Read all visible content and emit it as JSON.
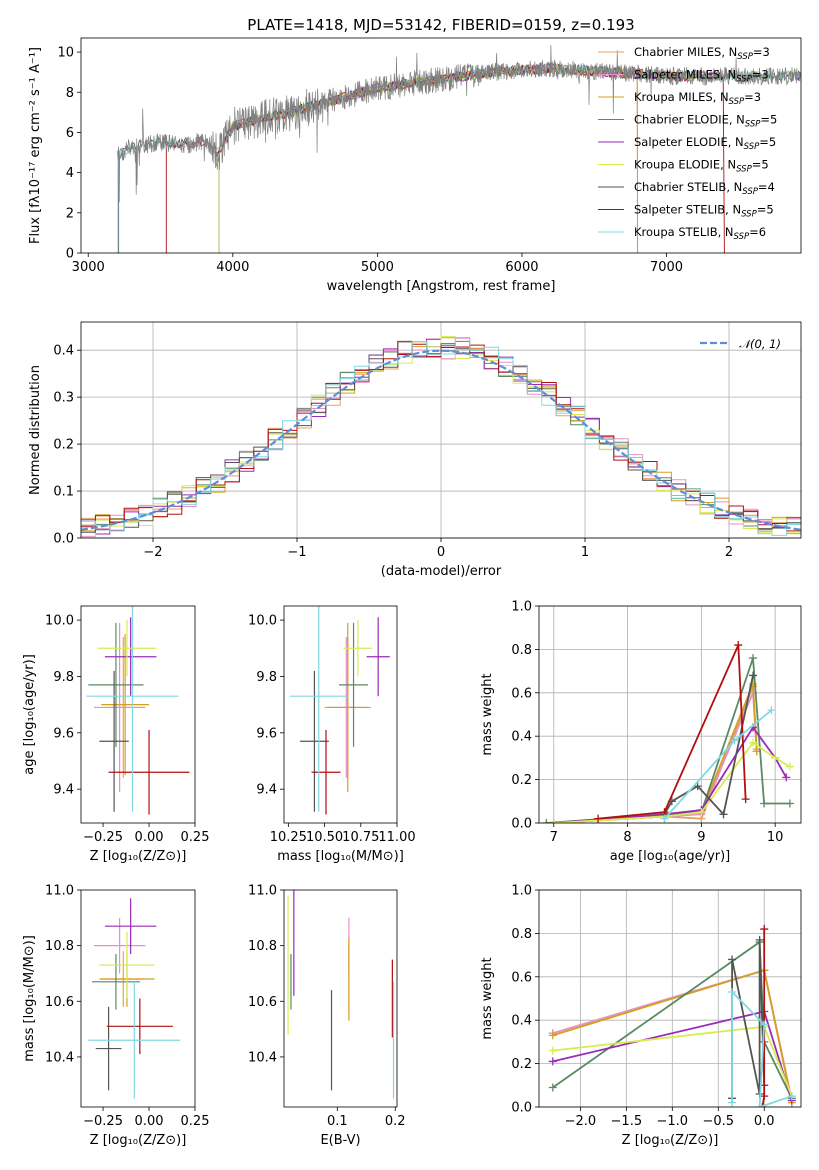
{
  "palette": {
    "chabrier_miles": "#e8a060",
    "salpeter_miles": "#e890c8",
    "kroupa_miles": "#d4a020",
    "chabrier_elodie": "#5a8a64",
    "salpeter_elodie": "#9a2ab8",
    "kroupa_elodie": "#d8ec50",
    "chabrier_stelib": "#555555",
    "salpeter_stelib": "#b01010",
    "kroupa_stelib": "#80d8e0",
    "spectrum": "#808080",
    "normal": "#5b8fd9"
  },
  "chart_data": [
    {
      "id": "spectrum",
      "type": "line",
      "title": "PLATE=1418, MJD=53142, FIBERID=0159, z=0.193",
      "xlabel": "wavelength [Angstrom, rest frame]",
      "ylabel": "Flux [fλ10⁻¹⁷ erg cm⁻² s⁻¹ A⁻¹]",
      "xlim": [
        2950,
        7930
      ],
      "ylim": [
        0,
        10.7
      ],
      "xticks": [
        3000,
        4000,
        5000,
        6000,
        7000
      ],
      "yticks": [
        0,
        2,
        4,
        6,
        8,
        10
      ],
      "grid": false,
      "legend_position": "top-right",
      "legend": [
        {
          "prefix": "Chabrier MILES, N",
          "sub": "SSP",
          "suffix": "=3",
          "key": "chabrier_miles"
        },
        {
          "prefix": "Salpeter MILES, N",
          "sub": "SSP",
          "suffix": "=3",
          "key": "salpeter_miles"
        },
        {
          "prefix": "Kroupa MILES, N",
          "sub": "SSP",
          "suffix": "=3",
          "key": "kroupa_miles"
        },
        {
          "prefix": "Chabrier ELODIE, N",
          "sub": "SSP",
          "suffix": "=5",
          "key": "chabrier_elodie"
        },
        {
          "prefix": "Salpeter ELODIE, N",
          "sub": "SSP",
          "suffix": "=5",
          "key": "salpeter_elodie"
        },
        {
          "prefix": "Kroupa ELODIE, N",
          "sub": "SSP",
          "suffix": "=5",
          "key": "kroupa_elodie"
        },
        {
          "prefix": "Chabrier STELIB, N",
          "sub": "SSP",
          "suffix": "=4",
          "key": "chabrier_stelib"
        },
        {
          "prefix": "Salpeter STELIB, N",
          "sub": "SSP",
          "suffix": "=5",
          "key": "salpeter_stelib"
        },
        {
          "prefix": "Kroupa STELIB, N",
          "sub": "SSP",
          "suffix": "=6",
          "key": "kroupa_stelib"
        }
      ],
      "continuum": [
        [
          3200,
          4.8
        ],
        [
          3300,
          5.3
        ],
        [
          3500,
          5.5
        ],
        [
          3700,
          5.4
        ],
        [
          3800,
          5.6
        ],
        [
          3900,
          5.0
        ],
        [
          4000,
          6.3
        ],
        [
          4200,
          6.7
        ],
        [
          4400,
          7.0
        ],
        [
          4600,
          7.4
        ],
        [
          4800,
          7.8
        ],
        [
          5000,
          8.2
        ],
        [
          5200,
          8.4
        ],
        [
          5400,
          8.6
        ],
        [
          5600,
          8.8
        ],
        [
          5800,
          9.0
        ],
        [
          6000,
          9.1
        ],
        [
          6200,
          9.2
        ],
        [
          6400,
          9.1
        ],
        [
          6600,
          9.0
        ],
        [
          6800,
          8.9
        ],
        [
          7000,
          8.8
        ],
        [
          7200,
          8.8
        ],
        [
          7400,
          8.8
        ],
        [
          7930,
          8.8
        ]
      ]
    },
    {
      "id": "residuals",
      "type": "step",
      "xlabel": "(data-model)/error",
      "ylabel": "Normed distribution",
      "xlim": [
        -2.5,
        2.5
      ],
      "ylim": [
        0,
        0.46
      ],
      "xticks": [
        -2,
        -1,
        0,
        1,
        2
      ],
      "yticks": [
        0.0,
        0.1,
        0.2,
        0.3,
        0.4
      ],
      "grid": true,
      "legend_position": "top-right",
      "legend_label": "𝒩(0, 1)",
      "bin_width": 0.1
    },
    {
      "id": "age_vs_z",
      "type": "errorbar",
      "xlabel": "Z [log₁₀(Z/Z⊙)]",
      "ylabel": "age  [log₁₀(age/yr)]",
      "xlim": [
        -0.37,
        0.25
      ],
      "ylim": [
        9.28,
        10.05
      ],
      "xticks": [
        -0.25,
        0.0,
        0.25
      ],
      "yticks": [
        9.4,
        9.6,
        9.8,
        10.0
      ],
      "grid": false,
      "points": [
        {
          "key": "chabrier_miles",
          "x": -0.14,
          "xerr": 0.12,
          "y": 9.69,
          "yerr": 0.25
        },
        {
          "key": "salpeter_miles",
          "x": -0.16,
          "xerr": 0.14,
          "y": 9.69,
          "yerr": 0.3
        },
        {
          "key": "kroupa_miles",
          "x": -0.13,
          "xerr": 0.13,
          "y": 9.7,
          "yerr": 0.25
        },
        {
          "key": "chabrier_elodie",
          "x": -0.18,
          "xerr": 0.15,
          "y": 9.77,
          "yerr": 0.22
        },
        {
          "key": "salpeter_elodie",
          "x": -0.1,
          "xerr": 0.14,
          "y": 9.87,
          "yerr": 0.14
        },
        {
          "key": "kroupa_elodie",
          "x": -0.12,
          "xerr": 0.16,
          "y": 9.9,
          "yerr": 0.1
        },
        {
          "key": "chabrier_stelib",
          "x": -0.19,
          "xerr": 0.08,
          "y": 9.57,
          "yerr": 0.25
        },
        {
          "key": "salpeter_stelib",
          "x": 0.0,
          "xerr": 0.22,
          "y": 9.46,
          "yerr": 0.15
        },
        {
          "key": "kroupa_stelib",
          "x": -0.09,
          "xerr": 0.25,
          "y": 9.73,
          "yerr": 0.41
        }
      ]
    },
    {
      "id": "age_vs_mass",
      "type": "errorbar",
      "xlabel": "mass [log₁₀(M/M⊙)]",
      "ylabel": "",
      "xlim": [
        10.22,
        11.0
      ],
      "ylim": [
        9.28,
        10.05
      ],
      "xticks": [
        10.25,
        10.5,
        10.75,
        11.0
      ],
      "yticks": [
        9.4,
        9.6,
        9.8,
        10.0
      ],
      "grid": false,
      "points": [
        {
          "key": "chabrier_miles",
          "x": 10.66,
          "xerr": 0.16,
          "y": 9.69,
          "yerr": 0.25
        },
        {
          "key": "salpeter_miles",
          "x": 10.65,
          "xerr": 0.12,
          "y": 9.69,
          "yerr": 0.25
        },
        {
          "key": "kroupa_miles",
          "x": 10.66,
          "xerr": 0.14,
          "y": 9.69,
          "yerr": 0.3
        },
        {
          "key": "chabrier_elodie",
          "x": 10.7,
          "xerr": 0.1,
          "y": 9.77,
          "yerr": 0.22
        },
        {
          "key": "salpeter_elodie",
          "x": 10.87,
          "xerr": 0.08,
          "y": 9.87,
          "yerr": 0.14
        },
        {
          "key": "kroupa_elodie",
          "x": 10.73,
          "xerr": 0.1,
          "y": 9.9,
          "yerr": 0.1
        },
        {
          "key": "chabrier_stelib",
          "x": 10.43,
          "xerr": 0.1,
          "y": 9.57,
          "yerr": 0.25
        },
        {
          "key": "salpeter_stelib",
          "x": 10.51,
          "xerr": 0.1,
          "y": 9.46,
          "yerr": 0.15
        },
        {
          "key": "kroupa_stelib",
          "x": 10.46,
          "xerr": 0.2,
          "y": 9.73,
          "yerr": 0.41
        }
      ]
    },
    {
      "id": "weight_vs_age",
      "type": "line",
      "xlabel": "age  [log₁₀(age/yr)]",
      "ylabel": "mass weight",
      "xlim": [
        6.8,
        10.35
      ],
      "ylim": [
        0,
        1
      ],
      "xticks": [
        7,
        8,
        9,
        10
      ],
      "yticks": [
        0.0,
        0.2,
        0.4,
        0.6,
        0.8,
        1.0
      ],
      "grid": true,
      "series": [
        {
          "key": "chabrier_miles",
          "x": [
            7.0,
            8.5,
            9.0,
            9.7,
            9.75
          ],
          "y": [
            0.0,
            0.03,
            0.02,
            0.63,
            0.34
          ]
        },
        {
          "key": "salpeter_miles",
          "x": [
            7.0,
            8.5,
            9.0,
            9.7,
            9.75
          ],
          "y": [
            0.0,
            0.03,
            0.04,
            0.6,
            0.33
          ]
        },
        {
          "key": "kroupa_miles",
          "x": [
            7.0,
            8.5,
            9.0,
            9.7,
            9.75
          ],
          "y": [
            0.0,
            0.03,
            0.05,
            0.64,
            0.33
          ]
        },
        {
          "key": "chabrier_elodie",
          "x": [
            6.9,
            8.5,
            9.0,
            9.7,
            9.85,
            10.2
          ],
          "y": [
            0.0,
            0.04,
            0.05,
            0.76,
            0.09,
            0.09
          ]
        },
        {
          "key": "salpeter_elodie",
          "x": [
            7.0,
            8.5,
            9.0,
            9.7,
            10.0,
            10.15
          ],
          "y": [
            0.0,
            0.04,
            0.06,
            0.44,
            0.3,
            0.21
          ]
        },
        {
          "key": "kroupa_elodie",
          "x": [
            7.0,
            8.5,
            9.0,
            9.7,
            10.0,
            10.2
          ],
          "y": [
            0.0,
            0.03,
            0.05,
            0.37,
            0.3,
            0.26
          ]
        },
        {
          "key": "chabrier_stelib",
          "x": [
            8.5,
            8.6,
            8.95,
            9.3,
            9.7
          ],
          "y": [
            0.04,
            0.1,
            0.17,
            0.04,
            0.68
          ]
        },
        {
          "key": "salpeter_stelib",
          "x": [
            7.6,
            8.5,
            9.5,
            9.6
          ],
          "y": [
            0.02,
            0.05,
            0.82,
            0.11
          ]
        },
        {
          "key": "kroupa_stelib",
          "x": [
            8.5,
            9.45,
            9.95
          ],
          "y": [
            0.02,
            0.38,
            0.52
          ]
        }
      ]
    },
    {
      "id": "mass_vs_z",
      "type": "errorbar",
      "xlabel": "Z [log₁₀(Z/Z⊙)]",
      "ylabel": "mass [log₁₀(M/M⊙)]",
      "xlim": [
        -0.37,
        0.25
      ],
      "ylim": [
        10.22,
        11.0
      ],
      "xticks": [
        -0.25,
        0.0,
        0.25
      ],
      "yticks": [
        10.4,
        10.6,
        10.8,
        11.0
      ],
      "grid": false,
      "points": [
        {
          "key": "chabrier_miles",
          "x": -0.14,
          "xerr": 0.12,
          "y": 10.68,
          "yerr": 0.1
        },
        {
          "key": "salpeter_miles",
          "x": -0.16,
          "xerr": 0.14,
          "y": 10.8,
          "yerr": 0.1
        },
        {
          "key": "kroupa_miles",
          "x": -0.12,
          "xerr": 0.15,
          "y": 10.68,
          "yerr": 0.1
        },
        {
          "key": "chabrier_elodie",
          "x": -0.18,
          "xerr": 0.13,
          "y": 10.67,
          "yerr": 0.1
        },
        {
          "key": "salpeter_elodie",
          "x": -0.1,
          "xerr": 0.14,
          "y": 10.87,
          "yerr": 0.1
        },
        {
          "key": "kroupa_elodie",
          "x": -0.12,
          "xerr": 0.15,
          "y": 10.73,
          "yerr": 0.12
        },
        {
          "key": "chabrier_stelib",
          "x": -0.22,
          "xerr": 0.07,
          "y": 10.43,
          "yerr": 0.15
        },
        {
          "key": "salpeter_stelib",
          "x": -0.05,
          "xerr": 0.18,
          "y": 10.51,
          "yerr": 0.1
        },
        {
          "key": "kroupa_stelib",
          "x": -0.08,
          "xerr": 0.25,
          "y": 10.46,
          "yerr": 0.21
        }
      ]
    },
    {
      "id": "mass_vs_ebv",
      "type": "errorbar",
      "xlabel": "E(B-V)",
      "ylabel": "",
      "xlim": [
        0.008,
        0.203
      ],
      "ylim": [
        10.22,
        11.0
      ],
      "xticks": [
        0.1,
        0.2
      ],
      "yticks": [
        10.4,
        10.6,
        10.8,
        11.0
      ],
      "grid": false,
      "points": [
        {
          "key": "chabrier_miles",
          "x": 0.12,
          "xerr": 0,
          "y": 10.68,
          "yerr": 0.12
        },
        {
          "key": "salpeter_miles",
          "x": 0.12,
          "xerr": 0,
          "y": 10.8,
          "yerr": 0.1
        },
        {
          "key": "kroupa_miles",
          "x": 0.12,
          "xerr": 0,
          "y": 10.68,
          "yerr": 0.15
        },
        {
          "key": "chabrier_elodie",
          "x": 0.02,
          "xerr": 0,
          "y": 10.67,
          "yerr": 0.1
        },
        {
          "key": "salpeter_elodie",
          "x": 0.025,
          "xerr": 0,
          "y": 10.87,
          "yerr": 0.25
        },
        {
          "key": "kroupa_elodie",
          "x": 0.015,
          "xerr": 0,
          "y": 10.73,
          "yerr": 0.25
        },
        {
          "key": "chabrier_stelib",
          "x": 0.09,
          "xerr": 0,
          "y": 10.46,
          "yerr": 0.18
        },
        {
          "key": "salpeter_stelib",
          "x": 0.195,
          "xerr": 0,
          "y": 10.61,
          "yerr": 0.14
        },
        {
          "key": "kroupa_stelib",
          "x": 0.197,
          "xerr": 0,
          "y": 10.46,
          "yerr": 0.21
        }
      ]
    },
    {
      "id": "weight_vs_z",
      "type": "line",
      "xlabel": "Z [log₁₀(Z/Z⊙)]",
      "ylabel": "mass weight",
      "xlim": [
        -2.45,
        0.4
      ],
      "ylim": [
        0,
        1
      ],
      "xticks": [
        -2.0,
        -1.5,
        -1.0,
        -0.5,
        0.0
      ],
      "yticks": [
        0.0,
        0.2,
        0.4,
        0.6,
        0.8,
        1.0
      ],
      "grid": true,
      "series": [
        {
          "key": "chabrier_miles",
          "x": [
            -2.3,
            0.0,
            0.3
          ],
          "y": [
            0.34,
            0.63,
            0.03
          ]
        },
        {
          "key": "salpeter_miles",
          "x": [
            -2.3,
            0.0,
            0.3
          ],
          "y": [
            0.34,
            0.63,
            0.03
          ]
        },
        {
          "key": "kroupa_miles",
          "x": [
            -2.3,
            0.0,
            0.3
          ],
          "y": [
            0.33,
            0.63,
            0.02
          ]
        },
        {
          "key": "chabrier_elodie",
          "x": [
            -2.3,
            -0.05,
            0.0,
            0.3
          ],
          "y": [
            0.09,
            0.76,
            0.3,
            0.04
          ]
        },
        {
          "key": "salpeter_elodie",
          "x": [
            -2.3,
            0.0,
            0.3
          ],
          "y": [
            0.21,
            0.44,
            0.03
          ]
        },
        {
          "key": "kroupa_elodie",
          "x": [
            -2.3,
            0.0,
            0.3
          ],
          "y": [
            0.26,
            0.37,
            0.05
          ]
        },
        {
          "key": "chabrier_stelib",
          "x": [
            -0.35,
            -0.35,
            -0.05,
            -0.05,
            0.0
          ],
          "y": [
            0.04,
            0.68,
            0.06,
            0.77,
            0.1
          ]
        },
        {
          "key": "salpeter_stelib",
          "x": [
            0.0,
            0.0,
            -0.02
          ],
          "y": [
            0.82,
            0.05,
            0.0
          ]
        },
        {
          "key": "kroupa_stelib",
          "x": [
            -0.35,
            -0.35,
            0.0,
            -0.05,
            0.3
          ],
          "y": [
            0.02,
            0.53,
            0.38,
            0.0,
            0.05
          ]
        }
      ]
    }
  ]
}
